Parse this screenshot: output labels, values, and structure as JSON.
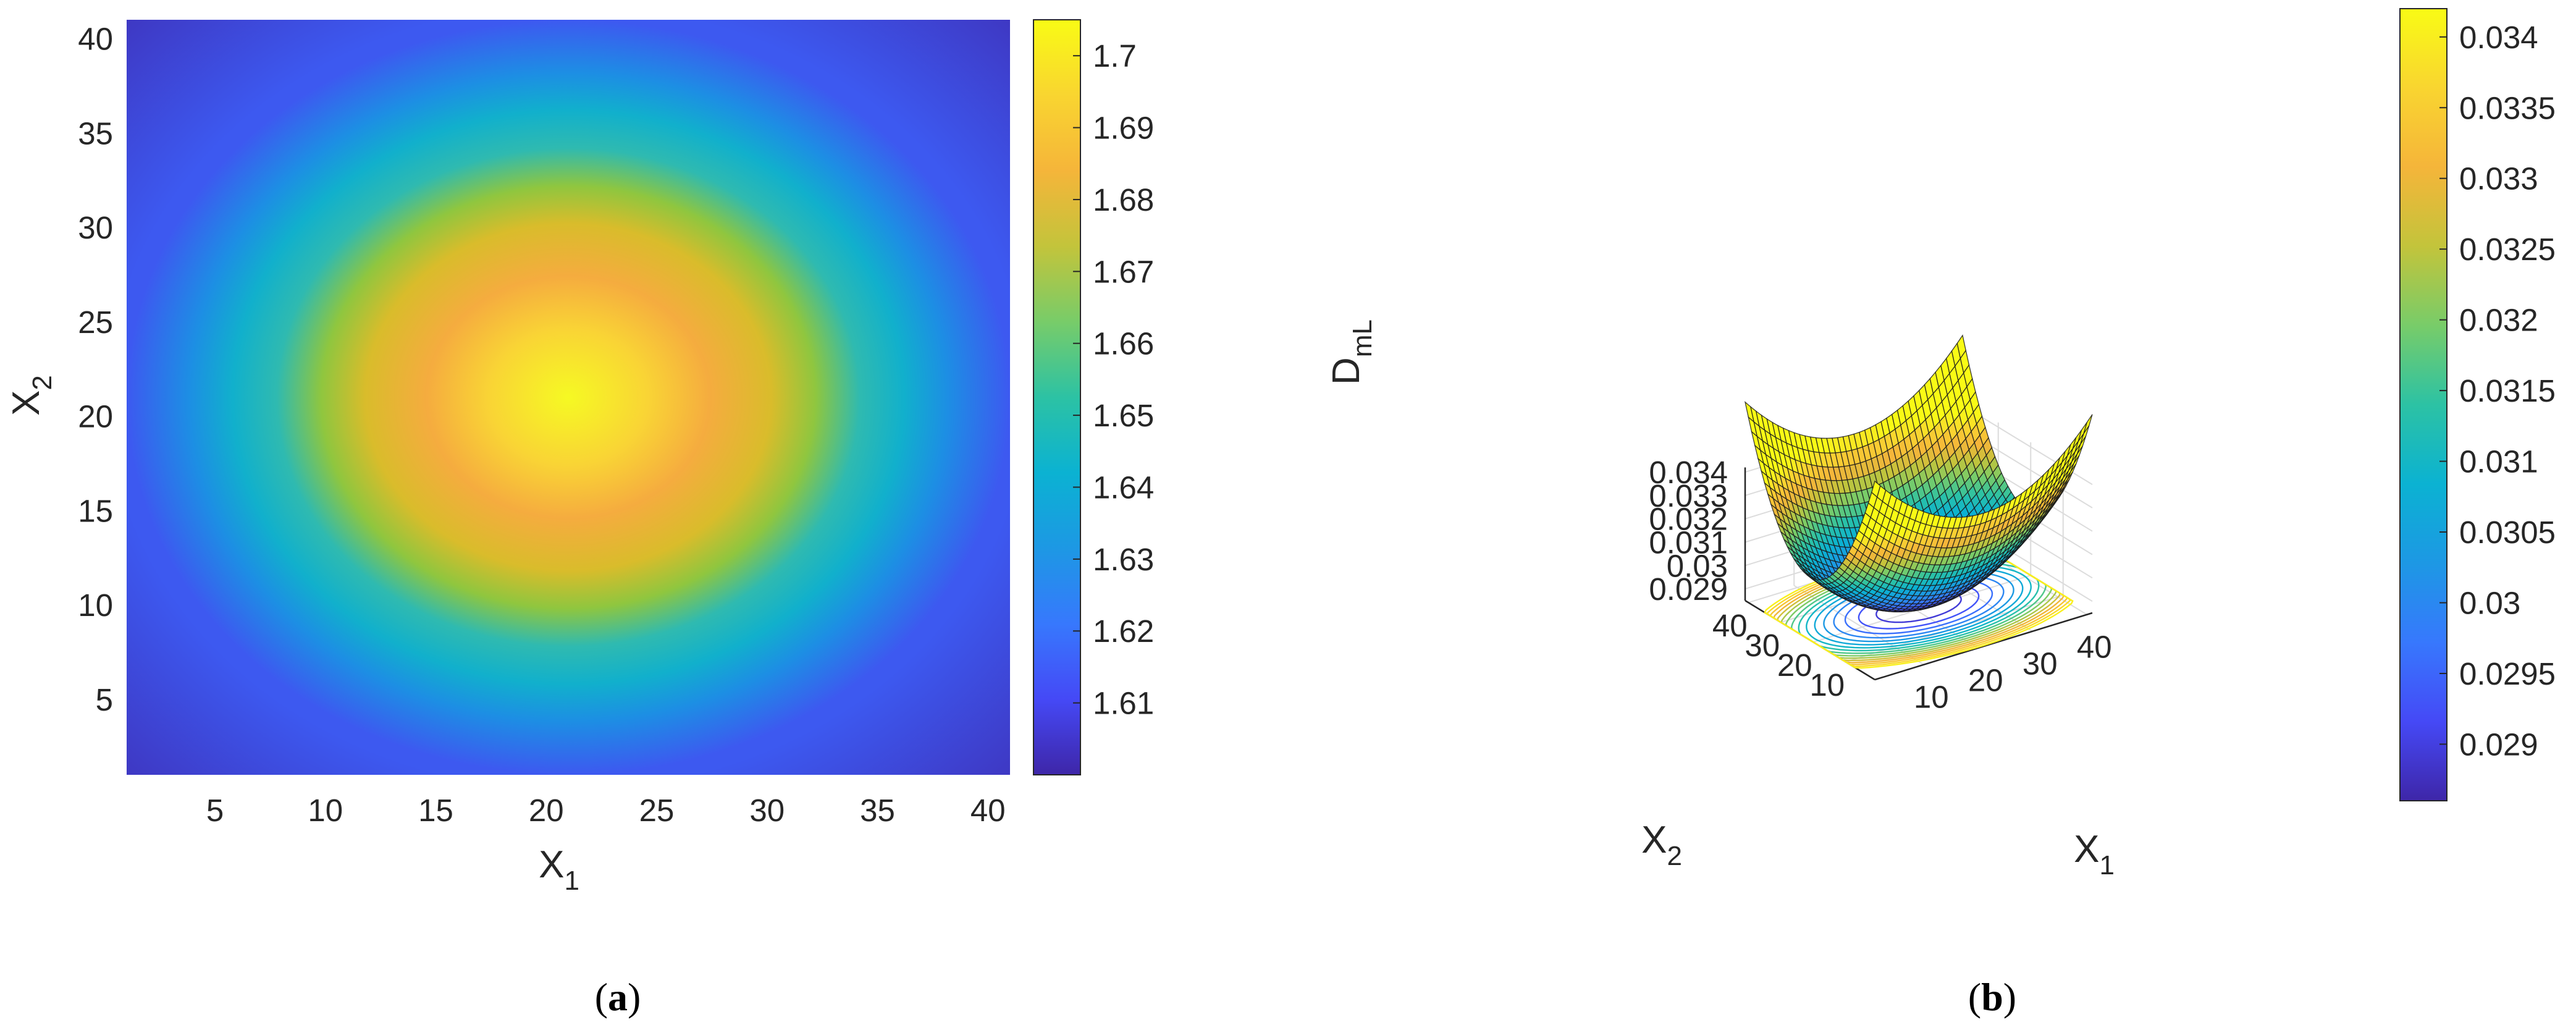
{
  "chart_data": [
    {
      "type": "heatmap",
      "panel_label": "a",
      "xlabel": "X",
      "xlabel_sub": "1",
      "ylabel": "X",
      "ylabel_sub": "2",
      "xlim": [
        1,
        41
      ],
      "ylim": [
        1,
        41
      ],
      "xticks": [
        5,
        10,
        15,
        20,
        25,
        30,
        35,
        40
      ],
      "yticks": [
        5,
        10,
        15,
        20,
        25,
        30,
        35,
        40
      ],
      "peak": {
        "x": 21,
        "y": 21,
        "value": 1.705
      },
      "z_range": [
        1.6,
        1.705
      ],
      "colorbar": {
        "min": 1.6,
        "max": 1.705,
        "ticks": [
          "1.61",
          "1.62",
          "1.63",
          "1.64",
          "1.65",
          "1.66",
          "1.67",
          "1.68",
          "1.69",
          "1.7"
        ],
        "tick_values": [
          1.61,
          1.62,
          1.63,
          1.64,
          1.65,
          1.66,
          1.67,
          1.68,
          1.69,
          1.7
        ]
      },
      "colormap": "parula"
    },
    {
      "type": "surface",
      "panel_label": "b",
      "xlabel": "X",
      "xlabel_sub": "1",
      "ylabel": "X",
      "ylabel_sub": "2",
      "zlabel": "D",
      "zlabel_sub": "mL",
      "xticks": [
        "10",
        "20",
        "30",
        "40"
      ],
      "yticks": [
        "10",
        "20",
        "30",
        "40"
      ],
      "zticks": [
        "0.029",
        "0.03",
        "0.031",
        "0.032",
        "0.033",
        "0.034"
      ],
      "zlim": [
        0.0285,
        0.0342
      ],
      "minimum": {
        "x": 21,
        "y": 21,
        "value": 0.0286
      },
      "contours_on_floor": true,
      "grid": true,
      "colorbar": {
        "min": 0.0286,
        "max": 0.0342,
        "ticks": [
          "0.029",
          "0.0295",
          "0.03",
          "0.0305",
          "0.031",
          "0.0315",
          "0.032",
          "0.0325",
          "0.033",
          "0.0335",
          "0.034"
        ],
        "tick_values": [
          0.029,
          0.0295,
          0.03,
          0.0305,
          0.031,
          0.0315,
          0.032,
          0.0325,
          0.033,
          0.0335,
          0.034
        ]
      },
      "colormap": "parula"
    }
  ]
}
